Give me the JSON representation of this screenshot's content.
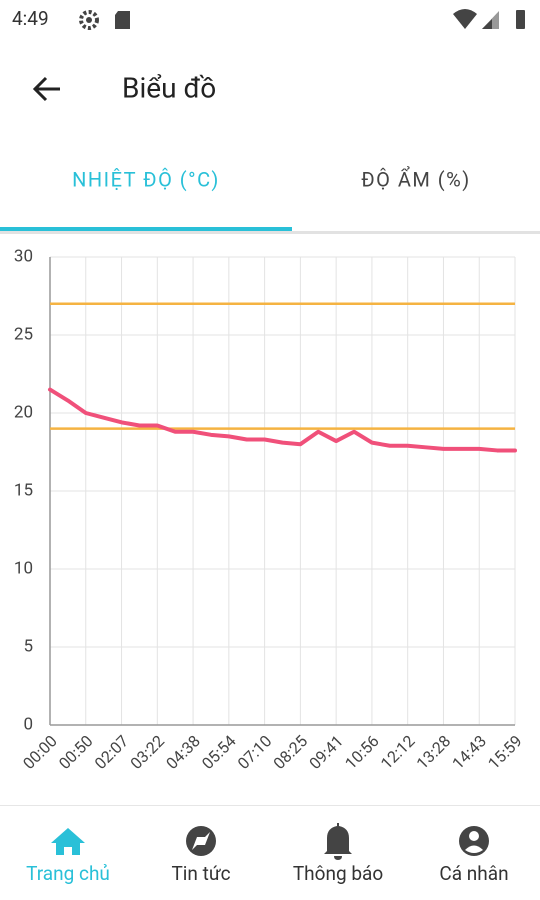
{
  "status_bar": {
    "time": "4:49"
  },
  "app_bar": {
    "title": "Biểu đồ"
  },
  "tabs": [
    "NHIỆT ĐỘ (°C)",
    "ĐỘ ẨM (%)"
  ],
  "chart_data": {
    "type": "line",
    "categories": [
      "00:00",
      null,
      "00:50",
      null,
      "02:07",
      null,
      "03:22",
      null,
      "04:38",
      null,
      "05:54",
      null,
      "07:10",
      null,
      "08:25",
      null,
      "09:41",
      null,
      "10:56",
      null,
      "12:12",
      null,
      "13:28",
      null,
      "14:43",
      null,
      "15:59"
    ],
    "series": [
      {
        "color": "#f0507a",
        "values": [
          21.5,
          20.8,
          20.0,
          19.7,
          19.4,
          19.2,
          19.2,
          18.8,
          18.8,
          18.6,
          18.5,
          18.3,
          18.3,
          18.1,
          18.0,
          18.8,
          18.2,
          18.8,
          18.1,
          17.9,
          17.9,
          17.8,
          17.7,
          17.7,
          17.7,
          17.6,
          17.6
        ]
      }
    ],
    "thresholds": {
      "color": "#f5b342",
      "values": [
        27,
        19
      ]
    },
    "ylim": [
      0,
      30
    ],
    "yticks": [
      0,
      5,
      10,
      15,
      20,
      25,
      30
    ],
    "grid": true
  },
  "bottom_nav": [
    "Trang chủ",
    "Tin tức",
    "Thông báo",
    "Cá nhân"
  ]
}
